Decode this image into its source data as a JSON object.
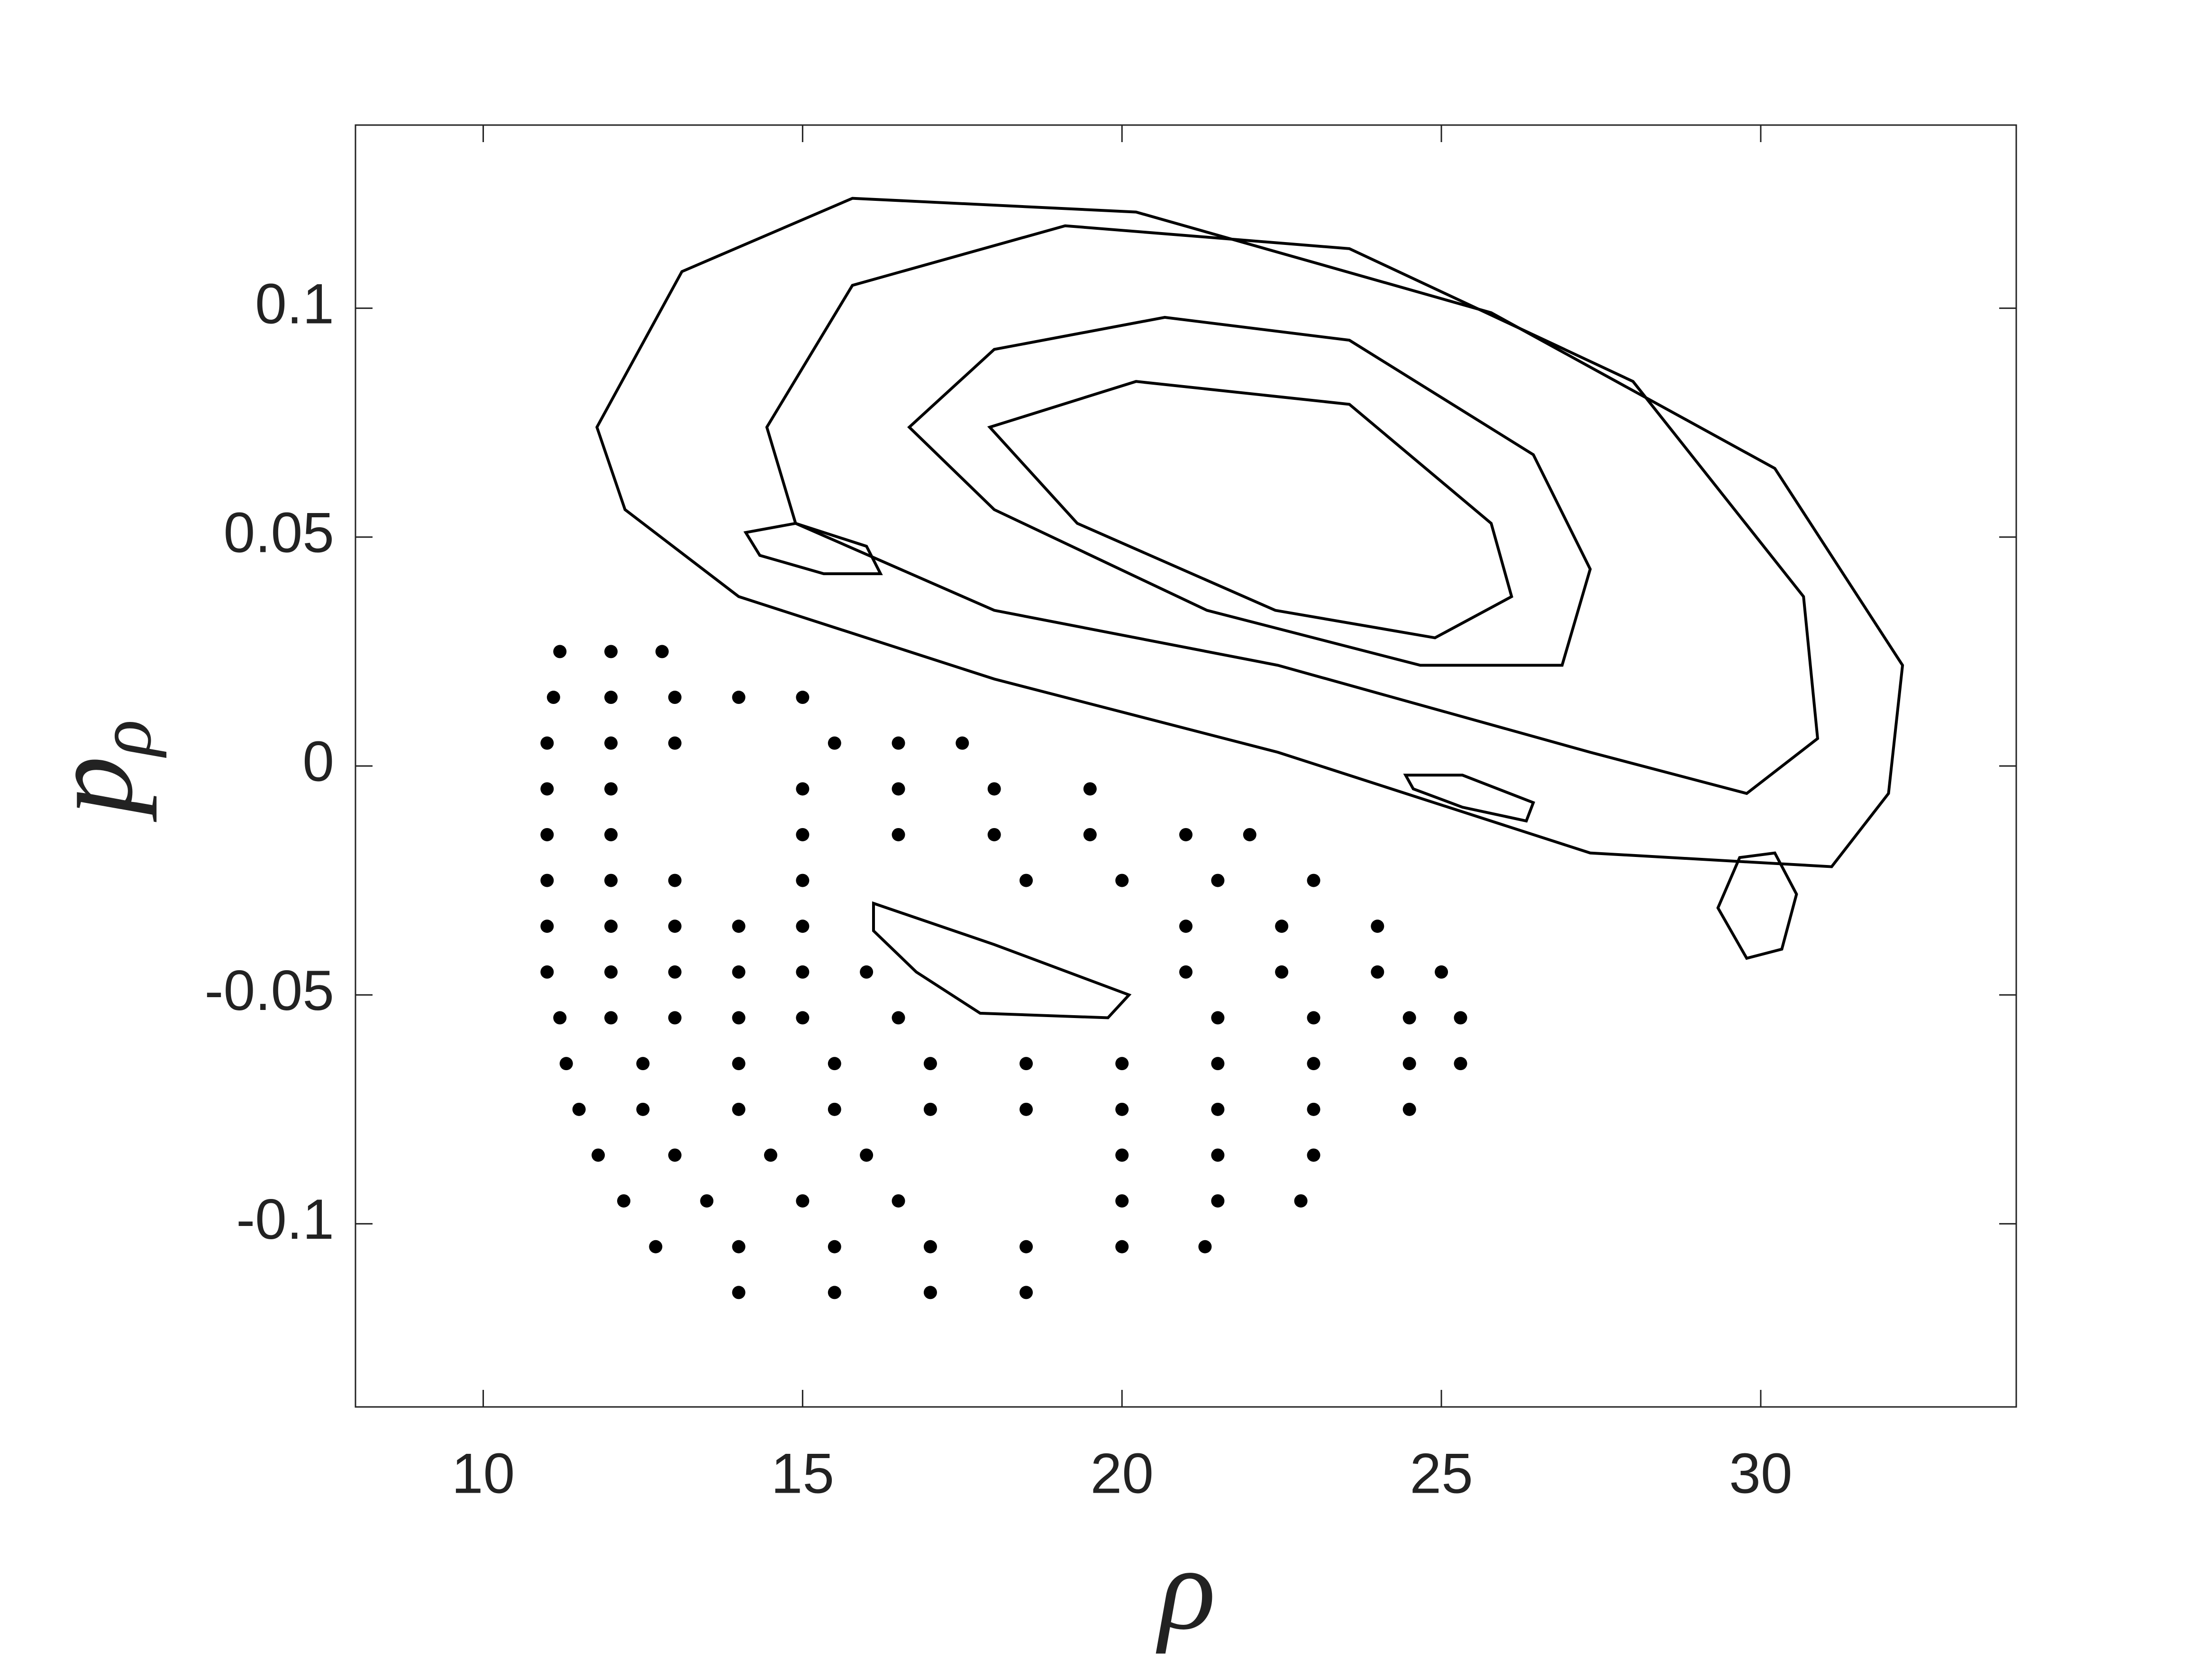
{
  "chart_data": {
    "type": "line",
    "xlabel": "ρ",
    "ylabel": "p",
    "ylabel_subscript": "ρ",
    "xlim": [
      8,
      34
    ],
    "ylim": [
      -0.14,
      0.14
    ],
    "xticks": [
      10,
      15,
      20,
      25,
      30
    ],
    "yticks": [
      -0.1,
      -0.05,
      0,
      0.05,
      0.1
    ],
    "series": [
      {
        "type": "line",
        "closed": true,
        "color": "#000000",
        "x": [
          17.93,
          20.22,
          23.56,
          25.78,
          26.1,
          24.9,
          22.4,
          19.3
        ],
        "values": [
          0.074,
          0.084,
          0.079,
          0.053,
          0.037,
          0.028,
          0.034,
          0.053
        ]
      },
      {
        "type": "line",
        "closed": true,
        "color": "#000000",
        "x": [
          16.67,
          18.0,
          20.67,
          23.56,
          26.44,
          27.33,
          26.89,
          24.67,
          21.33,
          18.0
        ],
        "values": [
          0.074,
          0.091,
          0.098,
          0.093,
          0.068,
          0.043,
          0.022,
          0.022,
          0.034,
          0.056
        ]
      },
      {
        "type": "line",
        "closed": true,
        "color": "#000000",
        "x": [
          14.44,
          15.78,
          19.11,
          23.56,
          28.0,
          30.67,
          30.89,
          29.78,
          27.33,
          22.44,
          18.0,
          14.89
        ],
        "values": [
          0.074,
          0.105,
          0.118,
          0.113,
          0.084,
          0.037,
          0.006,
          -0.006,
          0.003,
          0.022,
          0.034,
          0.053
        ]
      },
      {
        "type": "line",
        "closed": true,
        "color": "#000000",
        "x": [
          11.78,
          13.11,
          15.78,
          20.22,
          25.78,
          30.22,
          32.22,
          32.0,
          31.11,
          27.33,
          22.44,
          18.0,
          14.0,
          12.22
        ],
        "values": [
          0.074,
          0.108,
          0.124,
          0.121,
          0.099,
          0.065,
          0.022,
          -0.006,
          -0.022,
          -0.019,
          0.003,
          0.019,
          0.037,
          0.056
        ]
      },
      {
        "type": "line",
        "closed": true,
        "color": "#000000",
        "x": [
          29.33,
          29.67,
          30.22,
          30.56,
          30.33,
          29.78
        ],
        "values": [
          -0.031,
          -0.02,
          -0.019,
          -0.028,
          -0.04,
          -0.042
        ]
      },
      {
        "type": "line",
        "closed": true,
        "color": "#000000",
        "x": [
          14.11,
          14.89,
          16.0,
          16.22,
          15.33,
          14.33
        ],
        "values": [
          0.051,
          0.053,
          0.048,
          0.042,
          0.042,
          0.046
        ]
      },
      {
        "type": "line",
        "closed": true,
        "color": "#000000",
        "x": [
          24.44,
          25.33,
          26.44,
          26.33,
          25.33,
          24.56
        ],
        "values": [
          -0.002,
          -0.002,
          -0.008,
          -0.012,
          -0.009,
          -0.005
        ]
      },
      {
        "type": "line",
        "closed": true,
        "color": "#000000",
        "x": [
          16.11,
          18.0,
          20.11,
          19.78,
          17.78,
          16.78,
          16.11
        ],
        "values": [
          -0.03,
          -0.039,
          -0.05,
          -0.055,
          -0.054,
          -0.045,
          -0.036
        ]
      },
      {
        "type": "scatter",
        "color": "#000000",
        "x": [
          11.2,
          12.0,
          12.8,
          11.1,
          12.0,
          13.0,
          14.0,
          15.0,
          11.0,
          12.0,
          13.0,
          15.5,
          16.5,
          17.5,
          11.0,
          12.0,
          15.0,
          16.5,
          18.0,
          19.5,
          11.0,
          12.0,
          15.0,
          16.5,
          18.0,
          19.5,
          21.0,
          22.0,
          11.0,
          12.0,
          13.0,
          15.0,
          18.5,
          20.0,
          21.5,
          23.0,
          11.0,
          12.0,
          13.0,
          14.0,
          15.0,
          21.0,
          22.5,
          24.0,
          11.0,
          12.0,
          13.0,
          14.0,
          15.0,
          16.0,
          21.0,
          22.5,
          24.0,
          25.0,
          11.2,
          12.0,
          13.0,
          14.0,
          15.0,
          16.5,
          21.5,
          23.0,
          24.5,
          25.3,
          11.3,
          12.5,
          14.0,
          15.5,
          17.0,
          18.5,
          20.0,
          21.5,
          23.0,
          24.5,
          25.3,
          11.5,
          12.5,
          14.0,
          15.5,
          17.0,
          18.5,
          20.0,
          21.5,
          23.0,
          24.5,
          11.8,
          13.0,
          14.5,
          16.0,
          20.0,
          21.5,
          23.0,
          12.2,
          13.5,
          15.0,
          16.5,
          20.0,
          21.5,
          22.8,
          12.7,
          14.0,
          15.5,
          17.0,
          18.5,
          20.0,
          21.3,
          14.0,
          15.5,
          17.0,
          18.5
        ],
        "values": [
          0.025,
          0.025,
          0.025,
          0.015,
          0.015,
          0.015,
          0.015,
          0.015,
          0.005,
          0.005,
          0.005,
          0.005,
          0.005,
          0.005,
          -0.005,
          -0.005,
          -0.005,
          -0.005,
          -0.005,
          -0.005,
          -0.015,
          -0.015,
          -0.015,
          -0.015,
          -0.015,
          -0.015,
          -0.015,
          -0.015,
          -0.025,
          -0.025,
          -0.025,
          -0.025,
          -0.025,
          -0.025,
          -0.025,
          -0.025,
          -0.035,
          -0.035,
          -0.035,
          -0.035,
          -0.035,
          -0.035,
          -0.035,
          -0.035,
          -0.045,
          -0.045,
          -0.045,
          -0.045,
          -0.045,
          -0.045,
          -0.045,
          -0.045,
          -0.045,
          -0.045,
          -0.055,
          -0.055,
          -0.055,
          -0.055,
          -0.055,
          -0.055,
          -0.055,
          -0.055,
          -0.055,
          -0.055,
          -0.065,
          -0.065,
          -0.065,
          -0.065,
          -0.065,
          -0.065,
          -0.065,
          -0.065,
          -0.065,
          -0.065,
          -0.065,
          -0.075,
          -0.075,
          -0.075,
          -0.075,
          -0.075,
          -0.075,
          -0.075,
          -0.075,
          -0.075,
          -0.075,
          -0.085,
          -0.085,
          -0.085,
          -0.085,
          -0.085,
          -0.085,
          -0.085,
          -0.095,
          -0.095,
          -0.095,
          -0.095,
          -0.095,
          -0.095,
          -0.095,
          -0.105,
          -0.105,
          -0.105,
          -0.105,
          -0.105,
          -0.105,
          -0.105,
          -0.115,
          -0.115,
          -0.115,
          -0.115
        ]
      }
    ]
  }
}
